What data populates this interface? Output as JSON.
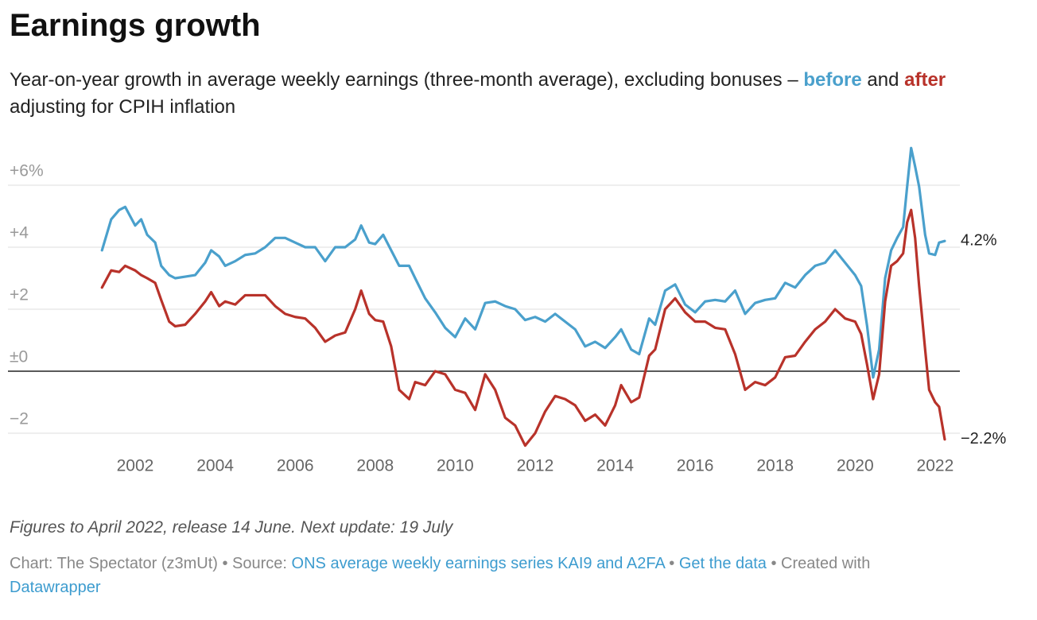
{
  "chart_data": {
    "type": "line",
    "title": "Earnings growth",
    "subtitle": {
      "lead": "Year-on-year growth in average weekly earnings (three-month average), excluding bonuses –",
      "joiner": "and",
      "tail": "adjusting for CPIH inflation"
    },
    "x": [
      2001.17,
      2001.4,
      2001.6,
      2001.75,
      2002.0,
      2002.15,
      2002.3,
      2002.5,
      2002.65,
      2002.85,
      2003.0,
      2003.25,
      2003.5,
      2003.75,
      2003.9,
      2004.1,
      2004.25,
      2004.5,
      2004.75,
      2005.0,
      2005.25,
      2005.5,
      2005.75,
      2006.0,
      2006.25,
      2006.5,
      2006.75,
      2007.0,
      2007.25,
      2007.5,
      2007.65,
      2007.85,
      2008.0,
      2008.2,
      2008.4,
      2008.6,
      2008.85,
      2009.0,
      2009.25,
      2009.5,
      2009.75,
      2010.0,
      2010.25,
      2010.5,
      2010.75,
      2011.0,
      2011.25,
      2011.5,
      2011.75,
      2012.0,
      2012.25,
      2012.5,
      2012.75,
      2013.0,
      2013.25,
      2013.5,
      2013.75,
      2014.0,
      2014.15,
      2014.4,
      2014.6,
      2014.85,
      2015.0,
      2015.25,
      2015.5,
      2015.75,
      2016.0,
      2016.25,
      2016.5,
      2016.75,
      2017.0,
      2017.25,
      2017.5,
      2017.75,
      2018.0,
      2018.25,
      2018.5,
      2018.75,
      2019.0,
      2019.25,
      2019.5,
      2019.75,
      2020.0,
      2020.15,
      2020.3,
      2020.45,
      2020.6,
      2020.75,
      2020.9,
      2021.05,
      2021.2,
      2021.3,
      2021.4,
      2021.5,
      2021.6,
      2021.75,
      2021.85,
      2022.0,
      2022.1,
      2022.24
    ],
    "series": [
      {
        "name": "before",
        "color": "#4aa0cc",
        "values": [
          3.9,
          4.9,
          5.2,
          5.3,
          4.7,
          4.9,
          4.4,
          4.15,
          3.4,
          3.1,
          3.0,
          3.05,
          3.1,
          3.5,
          3.9,
          3.7,
          3.4,
          3.55,
          3.75,
          3.8,
          4.0,
          4.3,
          4.3,
          4.15,
          4.0,
          4.0,
          3.55,
          4.0,
          4.0,
          4.25,
          4.7,
          4.15,
          4.1,
          4.4,
          3.9,
          3.4,
          3.4,
          3.0,
          2.35,
          1.9,
          1.4,
          1.1,
          1.7,
          1.35,
          2.2,
          2.25,
          2.1,
          2.0,
          1.65,
          1.75,
          1.6,
          1.85,
          1.6,
          1.35,
          0.8,
          0.95,
          0.75,
          1.1,
          1.35,
          0.7,
          0.55,
          1.7,
          1.5,
          2.6,
          2.8,
          2.15,
          1.9,
          2.25,
          2.3,
          2.25,
          2.6,
          1.85,
          2.2,
          2.3,
          2.35,
          2.85,
          2.7,
          3.1,
          3.4,
          3.5,
          3.9,
          3.5,
          3.1,
          2.75,
          1.45,
          -0.2,
          0.7,
          3.0,
          3.9,
          4.3,
          4.65,
          5.95,
          7.2,
          6.6,
          5.95,
          4.4,
          3.8,
          3.75,
          4.15,
          4.2
        ],
        "value_labels": [
          null,
          null,
          null,
          null,
          null,
          null,
          null,
          null,
          null,
          null,
          null,
          null,
          null,
          null,
          null,
          null,
          null,
          null,
          null,
          null,
          null,
          null,
          null,
          null,
          null,
          null,
          null,
          null,
          null,
          null,
          null,
          null,
          null,
          null,
          null,
          null,
          null,
          null,
          null,
          null,
          null,
          null,
          null,
          null,
          null,
          null,
          null,
          null,
          null,
          null,
          null,
          null,
          null,
          null,
          null,
          null,
          null,
          null,
          null,
          null,
          null,
          null,
          null,
          null,
          null,
          null,
          null,
          null,
          null,
          null,
          null,
          null,
          null,
          null,
          null,
          null,
          null,
          null,
          null,
          null,
          null,
          null,
          null,
          null,
          null,
          null,
          null,
          null,
          null,
          null,
          null,
          null,
          null,
          null,
          null,
          null,
          null,
          null,
          null,
          "4.2%"
        ]
      },
      {
        "name": "after",
        "color": "#b8322a",
        "values": [
          2.7,
          3.25,
          3.2,
          3.4,
          3.25,
          3.1,
          3.0,
          2.85,
          2.3,
          1.6,
          1.45,
          1.5,
          1.85,
          2.25,
          2.55,
          2.1,
          2.25,
          2.15,
          2.45,
          2.45,
          2.45,
          2.1,
          1.85,
          1.75,
          1.7,
          1.4,
          0.95,
          1.15,
          1.25,
          2.0,
          2.6,
          1.85,
          1.65,
          1.6,
          0.8,
          -0.6,
          -0.9,
          -0.35,
          -0.45,
          0.0,
          -0.1,
          -0.6,
          -0.7,
          -1.25,
          -0.1,
          -0.6,
          -1.5,
          -1.75,
          -2.4,
          -2.0,
          -1.3,
          -0.8,
          -0.9,
          -1.1,
          -1.6,
          -1.4,
          -1.75,
          -1.1,
          -0.45,
          -1.0,
          -0.85,
          0.5,
          0.7,
          2.0,
          2.35,
          1.9,
          1.6,
          1.6,
          1.4,
          1.35,
          0.55,
          -0.6,
          -0.35,
          -0.45,
          -0.2,
          0.45,
          0.5,
          0.95,
          1.35,
          1.6,
          2.0,
          1.7,
          1.6,
          1.2,
          0.2,
          -0.9,
          -0.1,
          2.25,
          3.4,
          3.55,
          3.8,
          4.8,
          5.2,
          4.3,
          2.75,
          0.7,
          -0.6,
          -1.0,
          -1.15,
          -2.2
        ],
        "value_labels": [
          null,
          null,
          null,
          null,
          null,
          null,
          null,
          null,
          null,
          null,
          null,
          null,
          null,
          null,
          null,
          null,
          null,
          null,
          null,
          null,
          null,
          null,
          null,
          null,
          null,
          null,
          null,
          null,
          null,
          null,
          null,
          null,
          null,
          null,
          null,
          null,
          null,
          null,
          null,
          null,
          null,
          null,
          null,
          null,
          null,
          null,
          null,
          null,
          null,
          null,
          null,
          null,
          null,
          null,
          null,
          null,
          null,
          null,
          null,
          null,
          null,
          null,
          null,
          null,
          null,
          null,
          null,
          null,
          null,
          null,
          null,
          null,
          null,
          null,
          null,
          null,
          null,
          null,
          null,
          null,
          null,
          null,
          null,
          null,
          null,
          null,
          null,
          null,
          null,
          null,
          null,
          null,
          null,
          null,
          null,
          null,
          null,
          null,
          null,
          "−2.2%"
        ]
      }
    ],
    "xlim": [
      2001,
      2022.5
    ],
    "xticks": [
      2002,
      2004,
      2006,
      2008,
      2010,
      2012,
      2014,
      2016,
      2018,
      2020,
      2022
    ],
    "ylim": [
      -2.5,
      7.5
    ],
    "yticks": [
      {
        "value": -2,
        "label": "−2"
      },
      {
        "value": 0,
        "label": "±0"
      },
      {
        "value": 2,
        "label": "+2"
      },
      {
        "value": 4,
        "label": "+4"
      },
      {
        "value": 6,
        "label": "+6%"
      }
    ],
    "grid": true
  },
  "footer": {
    "note": "Figures to April 2022, release 14 June. Next update: 19 July",
    "credit": "Chart: The Spectator (z3mUt) • Source:",
    "source_link": "ONS average weekly earnings series KAI9 and A2FA",
    "separator": "•",
    "data_link": "Get the data",
    "created": "• Created with",
    "tool_link": "Datawrapper"
  }
}
